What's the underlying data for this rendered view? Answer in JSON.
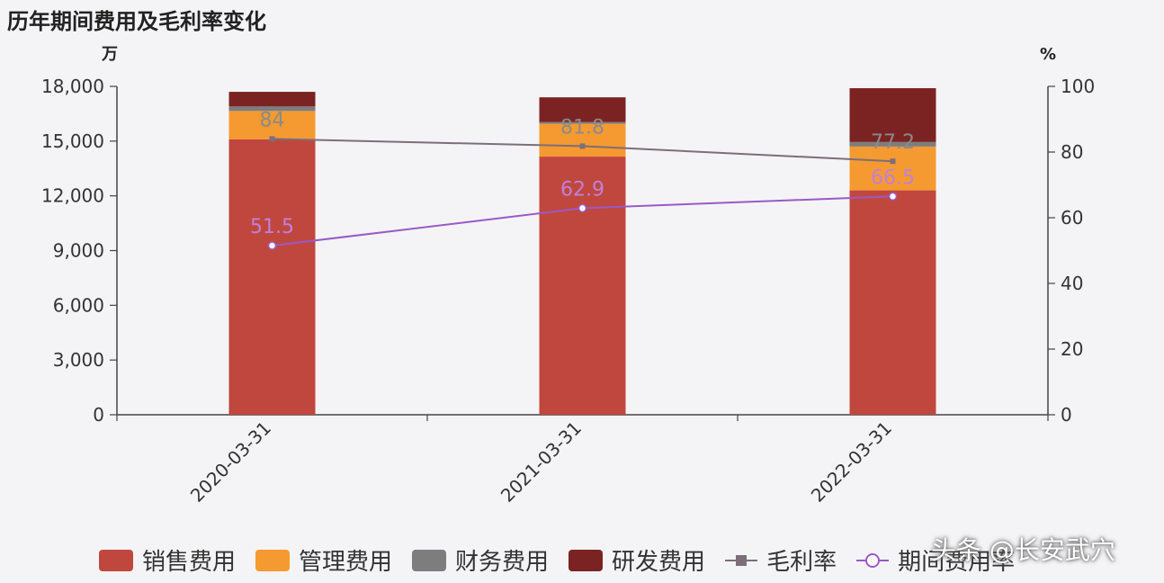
{
  "chart_data": {
    "type": "bar",
    "title": "历年期间费用及毛利率变化",
    "categories": [
      "2020-03-31",
      "2021-03-31",
      "2022-03-31"
    ],
    "left_axis": {
      "unit": "万",
      "ylim": [
        0,
        18000
      ],
      "ticks": [
        "18,000",
        "15,000",
        "12,000",
        "9,000",
        "6,000",
        "3,000",
        "0"
      ],
      "tick_values": [
        18000,
        15000,
        12000,
        9000,
        6000,
        3000,
        0
      ]
    },
    "right_axis": {
      "unit": "%",
      "ylim": [
        0,
        100
      ],
      "ticks": [
        "100",
        "80",
        "60",
        "40",
        "20",
        "0"
      ],
      "tick_values": [
        100,
        80,
        60,
        40,
        20,
        0
      ]
    },
    "series": [
      {
        "name": "销售费用",
        "kind": "bar",
        "color": "#c0473e",
        "values": [
          15100,
          14150,
          12300
        ]
      },
      {
        "name": "管理费用",
        "kind": "bar",
        "color": "#f59a30",
        "values": [
          1550,
          1800,
          2400
        ]
      },
      {
        "name": "财务费用",
        "kind": "bar",
        "color": "#7d7d7d",
        "values": [
          250,
          100,
          250
        ]
      },
      {
        "name": "研发费用",
        "kind": "bar",
        "color": "#7b2322",
        "values": [
          800,
          1350,
          2950
        ]
      },
      {
        "name": "毛利率",
        "kind": "line",
        "color": "#7c6e7a",
        "values": [
          84,
          81.8,
          77.2
        ],
        "labels": [
          "84",
          "81.8",
          "77.2"
        ]
      },
      {
        "name": "期间费用率",
        "kind": "line",
        "color": "#9b59c6",
        "values": [
          51.5,
          62.9,
          66.5
        ],
        "labels": [
          "51.5",
          "62.9",
          "66.5"
        ]
      }
    ],
    "legend_position": "bottom"
  },
  "watermark": "头条 @长安武穴"
}
